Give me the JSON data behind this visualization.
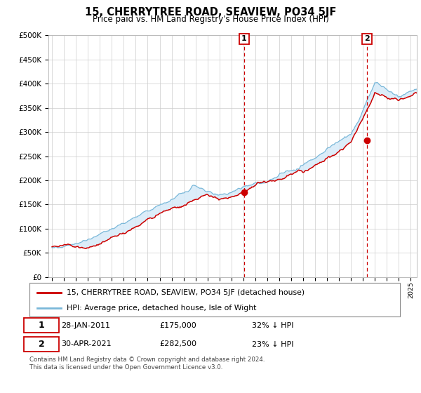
{
  "title": "15, CHERRYTREE ROAD, SEAVIEW, PO34 5JF",
  "subtitle": "Price paid vs. HM Land Registry's House Price Index (HPI)",
  "legend_line1": "15, CHERRYTREE ROAD, SEAVIEW, PO34 5JF (detached house)",
  "legend_line2": "HPI: Average price, detached house, Isle of Wight",
  "annotation1_date": "28-JAN-2011",
  "annotation1_price": "£175,000",
  "annotation1_hpi": "32% ↓ HPI",
  "annotation2_date": "30-APR-2021",
  "annotation2_price": "£282,500",
  "annotation2_hpi": "23% ↓ HPI",
  "footnote": "Contains HM Land Registry data © Crown copyright and database right 2024.\nThis data is licensed under the Open Government Licence v3.0.",
  "hpi_color": "#7ab8d9",
  "price_color": "#cc0000",
  "vline_color": "#cc0000",
  "fill_color": "#d6eaf8",
  "grid_color": "#cccccc",
  "ylim": [
    0,
    500000
  ],
  "yticks": [
    0,
    50000,
    100000,
    150000,
    200000,
    250000,
    300000,
    350000,
    400000,
    450000,
    500000
  ],
  "year_start": 1995,
  "year_end": 2025,
  "sale1_year": 2011.07,
  "sale1_value": 175000,
  "sale2_year": 2021.33,
  "sale2_value": 282500
}
